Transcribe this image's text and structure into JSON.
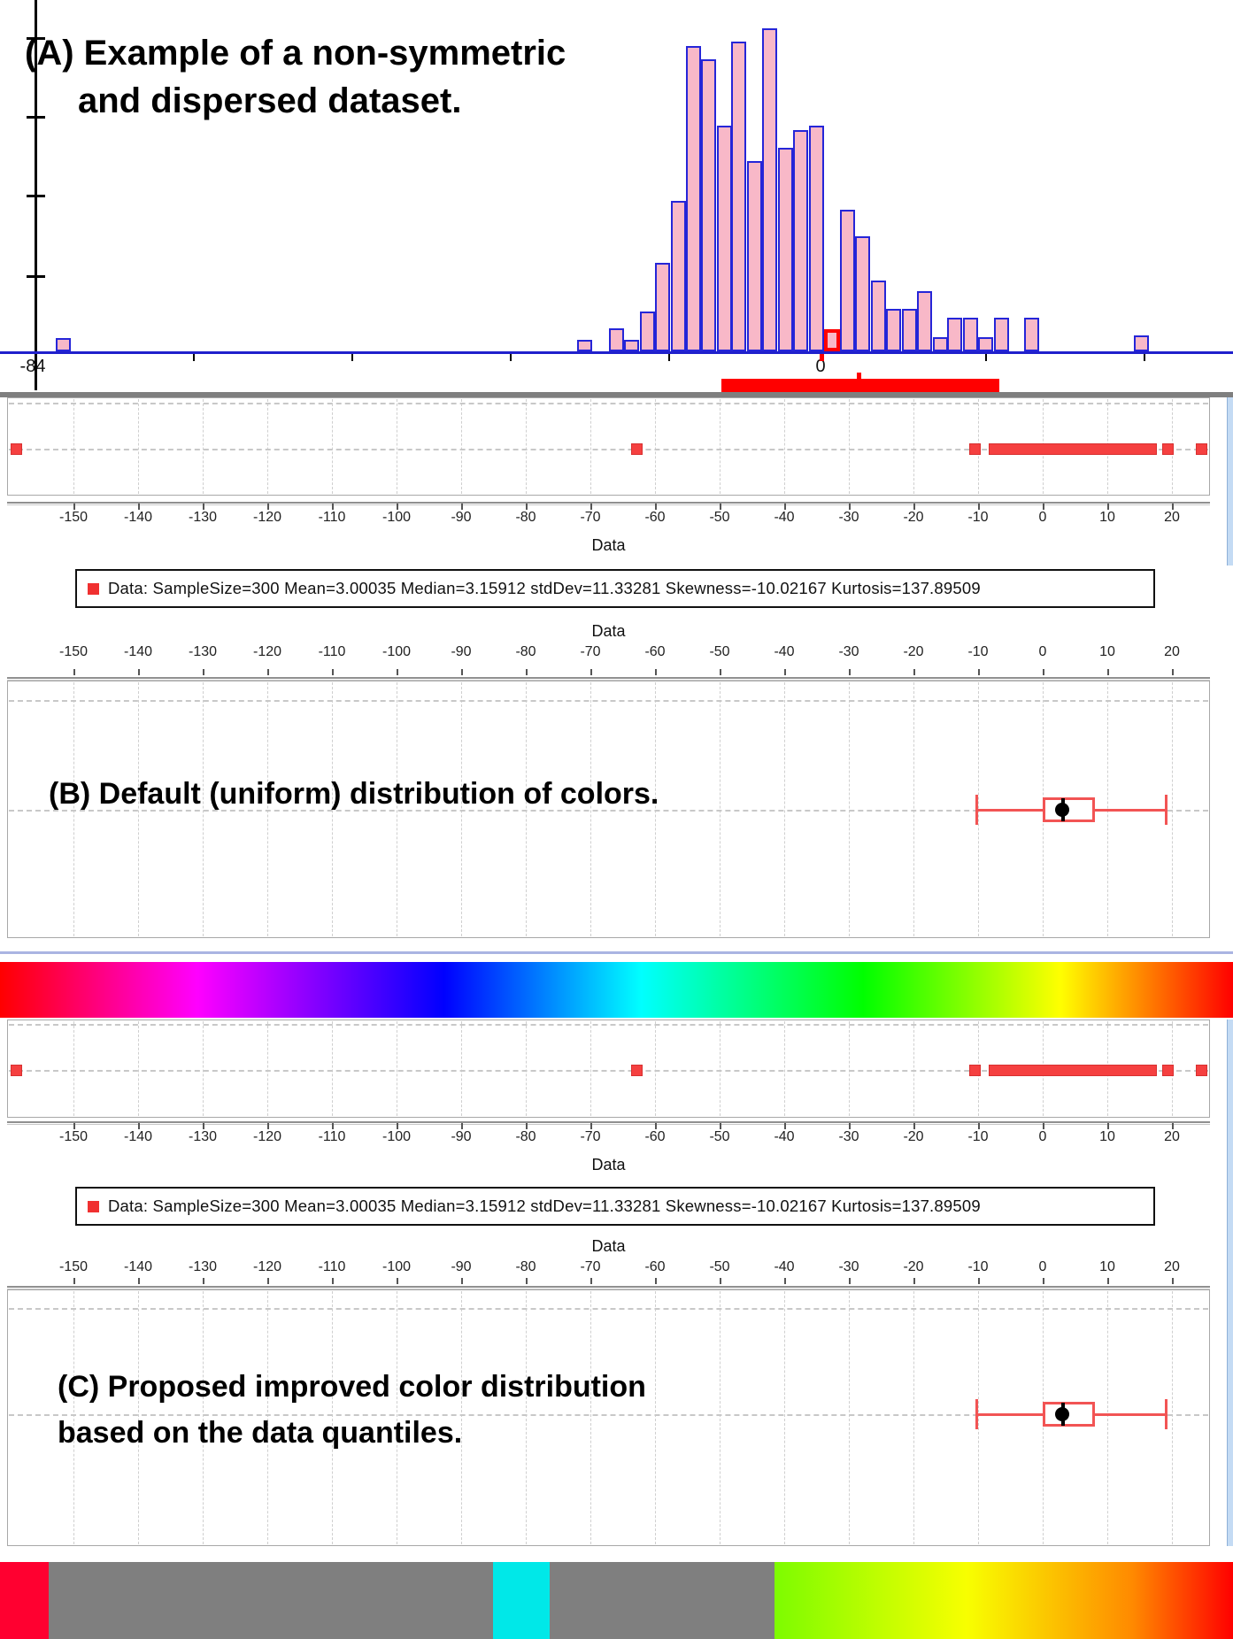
{
  "caption_a": {
    "line1": "(A) Example of a non-symmetric",
    "line2": "and dispersed dataset."
  },
  "caption_b": "(B) Default (uniform) distribution of colors.",
  "caption_c": {
    "line1": "(C) Proposed improved color distribution",
    "line2": "based on the data quantiles."
  },
  "axis_title": "Data",
  "legend_text": "Data: SampleSize=300 Mean=3.00035 Median=3.15912 stdDev=11.33281 Skewness=-10.02167 Kurtosis=137.89509",
  "stats": {
    "sample_size": 300,
    "mean": 3.00035,
    "median": 3.15912,
    "std_dev": 11.33281,
    "skewness": -10.02167,
    "kurtosis": 137.89509
  },
  "histogram_axis_labels": {
    "left": "-84",
    "zero": "0"
  },
  "colors": {
    "hist_fill": "#F8B8C8",
    "hist_stroke": "#2525D8",
    "baseline_blue": "#2020CC",
    "accent_red": "#FF0000",
    "marker_red": "#F54040",
    "box_red": "#F25454",
    "divider_gray": "#7F7F7F",
    "grid": "#CFCFCF",
    "lavender_line": "#AAB4E2"
  },
  "chart_data": [
    {
      "id": "histogram",
      "type": "bar",
      "title": "Example of a non-symmetric and dispersed dataset",
      "xlabel": "",
      "ylabel": "",
      "x_axis_shown_labels": [
        "-84",
        "0"
      ],
      "bin_width": 1.65,
      "bins": [
        [
          -81.0,
          15
        ],
        [
          -25.2,
          13
        ],
        [
          -21.8,
          26
        ],
        [
          -20.2,
          13
        ],
        [
          -18.5,
          45
        ],
        [
          -16.9,
          100
        ],
        [
          -15.2,
          170
        ],
        [
          -13.6,
          345
        ],
        [
          -12.0,
          330
        ],
        [
          -10.3,
          255
        ],
        [
          -8.7,
          350
        ],
        [
          -7.0,
          215
        ],
        [
          -5.4,
          365
        ],
        [
          -3.7,
          230
        ],
        [
          -2.1,
          250
        ],
        [
          -0.4,
          255
        ],
        [
          2.9,
          160
        ],
        [
          4.5,
          130
        ],
        [
          6.2,
          80
        ],
        [
          7.8,
          48
        ],
        [
          9.5,
          48
        ],
        [
          11.1,
          68
        ],
        [
          12.8,
          16
        ],
        [
          14.4,
          38
        ],
        [
          16.1,
          38
        ],
        [
          17.7,
          16
        ],
        [
          19.4,
          38
        ],
        [
          22.6,
          38
        ],
        [
          34.3,
          18
        ]
      ],
      "highlight_bin": {
        "x": 1.2,
        "count": 25,
        "outline": "#FF0000"
      },
      "range_marker": {
        "from": -15.3,
        "to": 27.6,
        "tick_at": 5.9,
        "color": "#FF0000"
      }
    },
    {
      "id": "strip_plot",
      "type": "scatter",
      "xlabel": "Data",
      "ticks": [
        -150,
        -140,
        -130,
        -120,
        -110,
        -100,
        -90,
        -80,
        -70,
        -60,
        -50,
        -40,
        -30,
        -20,
        -10,
        0,
        10,
        20
      ],
      "xlim": [
        -160,
        26
      ],
      "singles": [
        -158.8,
        -62.8,
        -10.5,
        19.4,
        24.6
      ],
      "band": [
        -8.3,
        17.7
      ],
      "marker_color": "#F54040"
    },
    {
      "id": "boxplot",
      "type": "box",
      "low": -10.2,
      "q1": 0.05,
      "median": 3.16,
      "q3": 8.1,
      "high": 19.1,
      "mean": 3.0,
      "color": "#F25454"
    },
    {
      "id": "colorbar_uniform",
      "type": "heatmap",
      "stops": [
        [
          "#FF0000",
          0
        ],
        [
          "#FF00FF",
          16
        ],
        [
          "#0000FF",
          36
        ],
        [
          "#00FFFF",
          52
        ],
        [
          "#00FF00",
          70
        ],
        [
          "#FFFF00",
          86
        ],
        [
          "#FF0000",
          100
        ]
      ]
    },
    {
      "id": "colorbar_quantile",
      "type": "heatmap",
      "segments": [
        {
          "from": 0,
          "to": 3.95,
          "color": "#FF0030"
        },
        {
          "from": 3.95,
          "to": 40.0,
          "color": "#7F7F7F"
        },
        {
          "from": 40.0,
          "to": 44.6,
          "color": "#00E8E8"
        },
        {
          "from": 44.6,
          "to": 62.8,
          "color": "#7F7F7F"
        },
        {
          "from": 62.8,
          "to": 100,
          "gradient": [
            [
              "#7DFC00",
              0
            ],
            [
              "#F8FF00",
              42
            ],
            [
              "#FF8A00",
              78
            ],
            [
              "#FF0000",
              100
            ]
          ]
        }
      ]
    }
  ]
}
